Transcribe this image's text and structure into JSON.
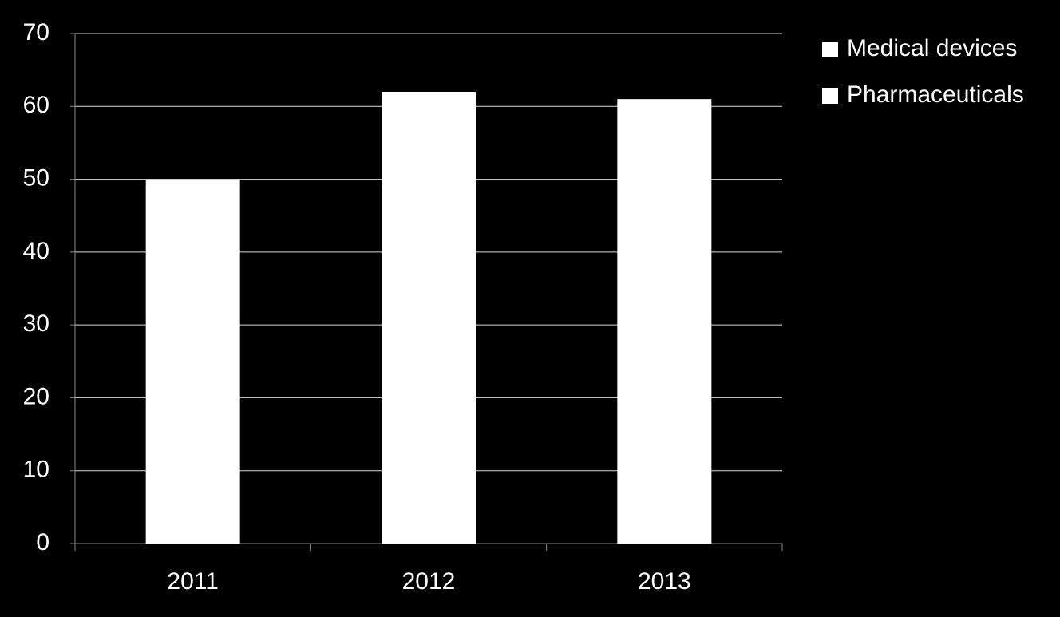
{
  "chart_data": {
    "type": "stacked_bar",
    "categories": [
      "2011",
      "2012",
      "2013"
    ],
    "series": [
      {
        "name": "Medical devices",
        "color": "#ffffff",
        "values": [
          50,
          62,
          61
        ]
      },
      {
        "name": "Pharmaceuticals",
        "color": "#ffffff",
        "values": [
          null,
          null,
          null
        ]
      }
    ],
    "ylim": [
      0,
      70
    ],
    "yticks": [
      0,
      10,
      20,
      30,
      40,
      50,
      60,
      70
    ],
    "grid": true,
    "legend": "right"
  }
}
